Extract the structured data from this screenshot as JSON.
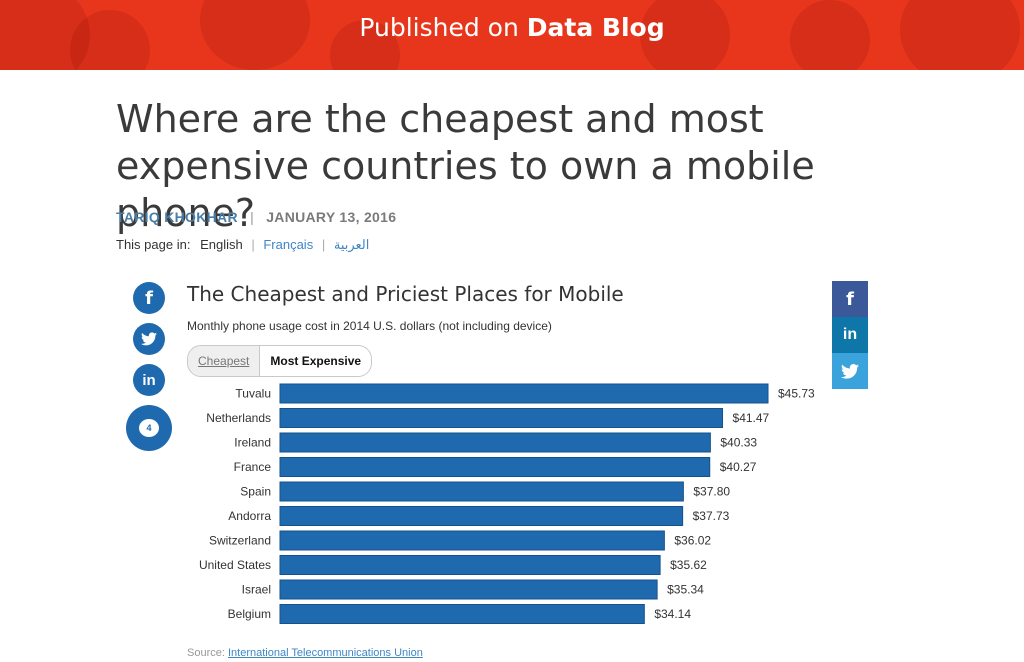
{
  "banner": {
    "lead": "Published on",
    "blog": "Data Blog",
    "color": "#e8361d"
  },
  "article": {
    "headline": "Where are the cheapest and most expensive countries to own a mobile phone?",
    "author": "TARIQ KHOKHAR",
    "separator": "|",
    "date": "JANUARY 13, 2016"
  },
  "languages": {
    "label": "This page in:",
    "current": "English",
    "others": [
      "Français",
      "العربية"
    ],
    "divider": "|"
  },
  "share_left": {
    "facebook_icon": "f",
    "twitter_icon": "bird",
    "linkedin_icon": "in",
    "comment_count": "4"
  },
  "share_right": {
    "facebook_icon": "f",
    "linkedin_icon": "in",
    "twitter_icon": "bird",
    "colors": [
      "#3b5998",
      "#0e76a8",
      "#3aa3dc"
    ]
  },
  "chart": {
    "toggle": {
      "cheapest_label": "Cheapest",
      "expensive_label": "Most Expensive",
      "selected": "Most Expensive"
    },
    "source_label": "Source:",
    "source_link": "International Telecommunications Union"
  },
  "chart_data": {
    "type": "bar",
    "orientation": "horizontal",
    "title": "The Cheapest and Priciest Places for Mobile",
    "subtitle": "Monthly phone usage cost in 2014 U.S. dollars (not including device)",
    "categories": [
      "Tuvalu",
      "Netherlands",
      "Ireland",
      "France",
      "Spain",
      "Andorra",
      "Switzerland",
      "United States",
      "Israel",
      "Belgium"
    ],
    "values": [
      45.73,
      41.47,
      40.33,
      40.27,
      37.8,
      37.73,
      36.02,
      35.62,
      35.34,
      34.14
    ],
    "value_labels": [
      "$45.73",
      "$41.47",
      "$40.33",
      "$40.27",
      "$37.80",
      "$37.73",
      "$36.02",
      "$35.62",
      "$35.34",
      "$34.14"
    ],
    "xlim": [
      0,
      45.73
    ],
    "bar_color": "#1f6aaf",
    "grid": false,
    "legend": "none"
  }
}
